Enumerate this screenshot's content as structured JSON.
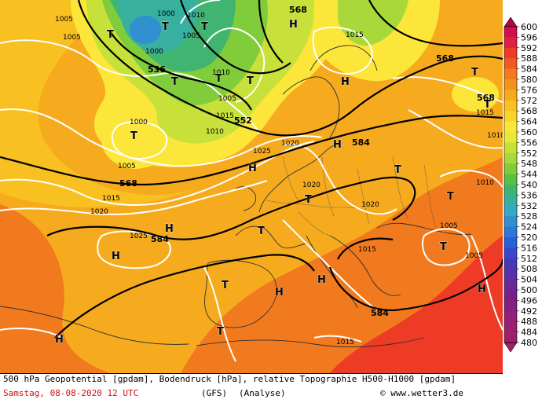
{
  "caption": "500 hPa Geopotential [gpdam], Bodendruck [hPa], relative Topographie H500-H1000 [gpdam]",
  "footer": {
    "date": "Samstag, 08-08-2020  12 UTC",
    "model": "(GFS)",
    "analysis": "(Analyse)",
    "credit": "© www.wetter3.de"
  },
  "legend": {
    "values": [
      "600",
      "596",
      "592",
      "588",
      "584",
      "580",
      "576",
      "572",
      "568",
      "564",
      "560",
      "556",
      "552",
      "548",
      "544",
      "540",
      "536",
      "532",
      "528",
      "524",
      "520",
      "516",
      "512",
      "508",
      "504",
      "500",
      "496",
      "492",
      "488",
      "484",
      "480"
    ],
    "colors": [
      "#b8004a",
      "#d0104a",
      "#e02040",
      "#ee3b26",
      "#f05a1e",
      "#f27a1e",
      "#f4921e",
      "#f6ab1e",
      "#f8c020",
      "#fad428",
      "#fce63a",
      "#e8e83a",
      "#c8e03a",
      "#a8d83a",
      "#80cc3a",
      "#58c040",
      "#40b470",
      "#38b0a0",
      "#34a8c4",
      "#3090d0",
      "#2c78d8",
      "#2860d8",
      "#3848c8",
      "#4838b8",
      "#5830a8",
      "#682898",
      "#782088",
      "#842080",
      "#902078",
      "#982070",
      "#a02068"
    ]
  },
  "map": {
    "pressure_labels": [
      {
        "text": "1005"
      },
      {
        "text": "1000"
      },
      {
        "text": "1010"
      },
      {
        "text": "1005"
      },
      {
        "text": "1005"
      },
      {
        "text": "1000"
      },
      {
        "text": "1010"
      },
      {
        "text": "1005"
      },
      {
        "text": "1015"
      },
      {
        "text": "1015"
      },
      {
        "text": "1000"
      },
      {
        "text": "1005"
      },
      {
        "text": "1010"
      },
      {
        "text": "1015"
      },
      {
        "text": "1025"
      },
      {
        "text": "1020"
      },
      {
        "text": "1020"
      },
      {
        "text": "1020"
      },
      {
        "text": "1015"
      },
      {
        "text": "1025"
      },
      {
        "text": "1020"
      },
      {
        "text": "1015"
      },
      {
        "text": "1005"
      },
      {
        "text": "1005"
      },
      {
        "text": "1010"
      },
      {
        "text": "1015"
      },
      {
        "text": "1010"
      }
    ],
    "geopotential_labels": [
      {
        "text": "568"
      },
      {
        "text": "536"
      },
      {
        "text": "552"
      },
      {
        "text": "568"
      },
      {
        "text": "584"
      },
      {
        "text": "584"
      },
      {
        "text": "568"
      },
      {
        "text": "568"
      },
      {
        "text": "584"
      }
    ],
    "pressure_centers": [
      {
        "text": "T"
      },
      {
        "text": "T"
      },
      {
        "text": "T"
      },
      {
        "text": "T"
      },
      {
        "text": "T"
      },
      {
        "text": "T"
      },
      {
        "text": "T"
      },
      {
        "text": "T"
      },
      {
        "text": "H"
      },
      {
        "text": "H"
      },
      {
        "text": "H"
      },
      {
        "text": "H"
      },
      {
        "text": "H"
      },
      {
        "text": "H"
      },
      {
        "text": "T"
      },
      {
        "text": "T"
      },
      {
        "text": "T"
      },
      {
        "text": "H"
      },
      {
        "text": "T"
      },
      {
        "text": "T"
      },
      {
        "text": "H"
      },
      {
        "text": "T"
      },
      {
        "text": "T"
      },
      {
        "text": "H"
      },
      {
        "text": "H"
      },
      {
        "text": "T"
      }
    ]
  }
}
